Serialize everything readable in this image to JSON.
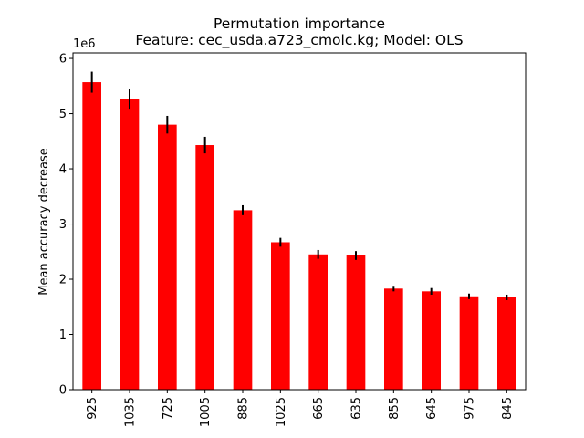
{
  "chart_data": {
    "type": "bar",
    "title": "Permutation importance",
    "subtitle": "Feature: cec_usda.a723_cmolc.kg; Model: OLS",
    "xlabel": "",
    "ylabel": "Mean accuracy decrease",
    "y_offset_label": "1e6",
    "categories": [
      "925",
      "1035",
      "725",
      "1005",
      "885",
      "1025",
      "665",
      "635",
      "855",
      "645",
      "975",
      "845"
    ],
    "values": [
      5.57,
      5.27,
      4.8,
      4.43,
      3.25,
      2.67,
      2.45,
      2.43,
      1.83,
      1.78,
      1.69,
      1.67
    ],
    "errors": [
      0.19,
      0.18,
      0.16,
      0.15,
      0.09,
      0.08,
      0.08,
      0.08,
      0.05,
      0.06,
      0.05,
      0.05
    ],
    "ylim": [
      0,
      6.1
    ],
    "yticks": [
      0,
      1,
      2,
      3,
      4,
      5,
      6
    ],
    "bar_color": "#ff0000",
    "error_color": "#000000",
    "grid": false,
    "legend": false
  }
}
